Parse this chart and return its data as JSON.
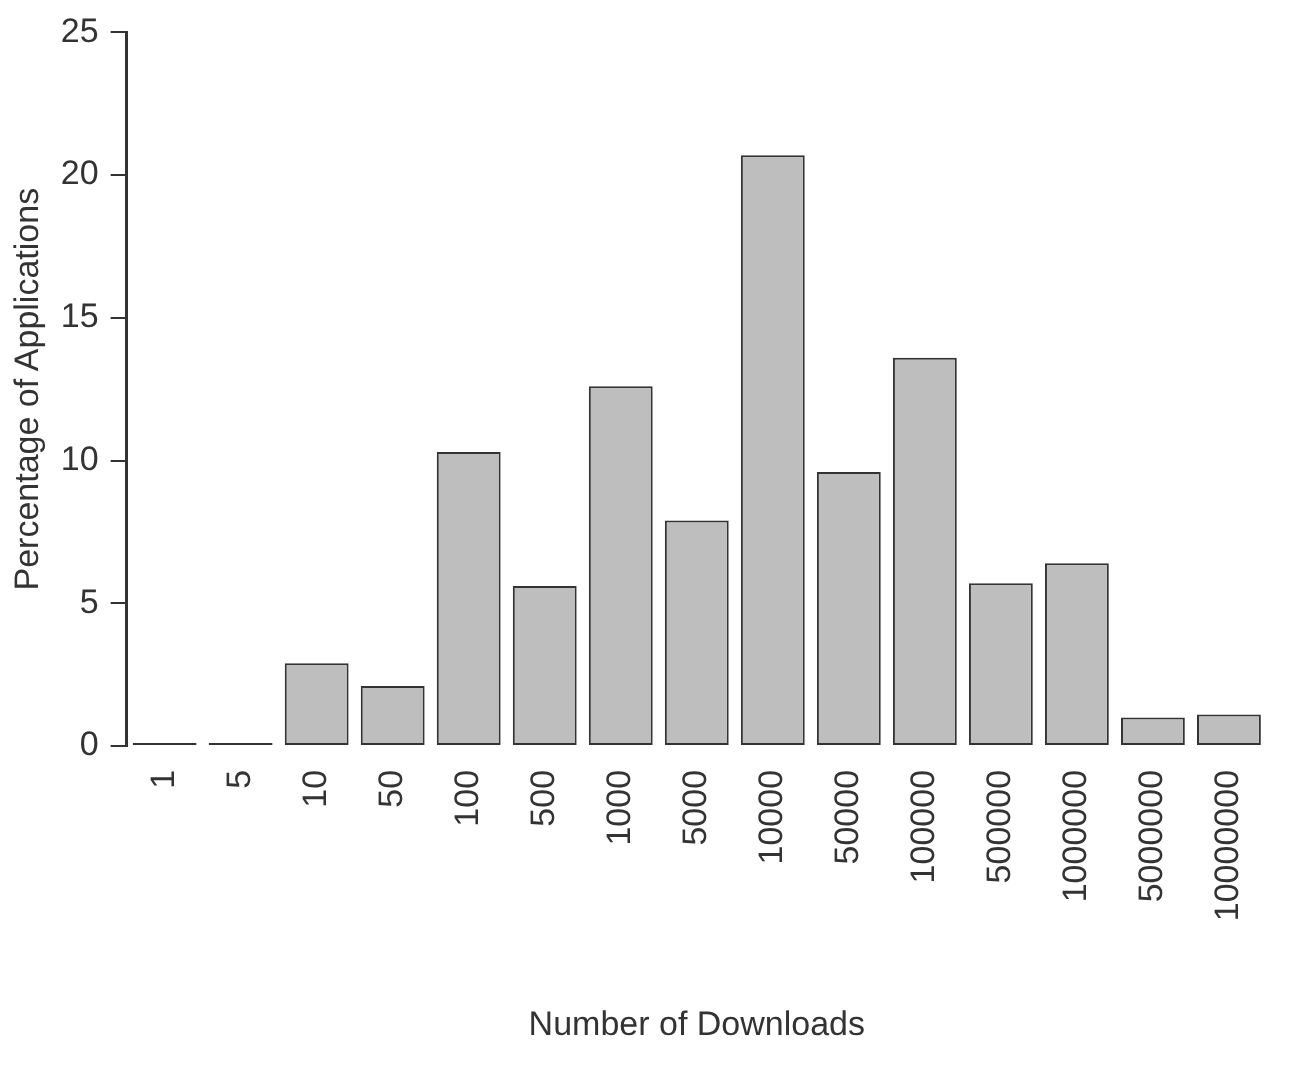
{
  "chart_data": {
    "type": "bar",
    "xlabel": "Number of Downloads",
    "ylabel": "Percentage of Applications",
    "categories": [
      "1",
      "5",
      "10",
      "50",
      "100",
      "500",
      "1000",
      "5000",
      "10000",
      "50000",
      "100000",
      "500000",
      "1000000",
      "5000000",
      "10000000"
    ],
    "values": [
      0.1,
      0.1,
      2.9,
      2.1,
      10.3,
      5.6,
      12.6,
      7.9,
      20.7,
      9.6,
      13.6,
      5.7,
      6.4,
      1.0,
      1.1
    ],
    "colors": [
      "#333333",
      "#333333",
      "#bebebe",
      "#bebebe",
      "#bebebe",
      "#bebebe",
      "#bebebe",
      "#bebebe",
      "#bebebe",
      "#bebebe",
      "#bebebe",
      "#bebebe",
      "#bebebe",
      "#bebebe",
      "#bebebe"
    ],
    "ylim": [
      0,
      25
    ],
    "yticks": [
      0,
      5,
      10,
      15,
      20,
      25
    ],
    "grid": false,
    "legend": false
  }
}
